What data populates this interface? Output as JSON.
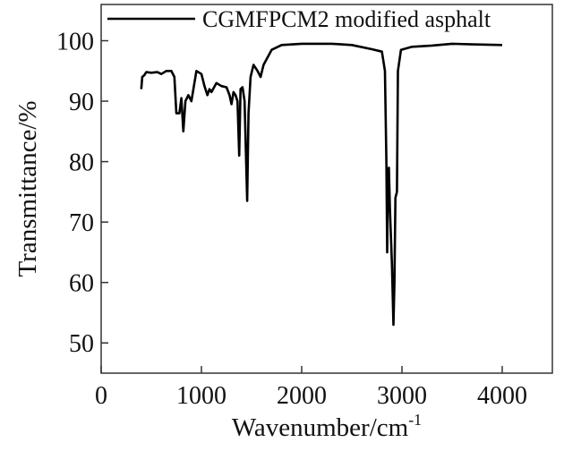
{
  "chart_data": {
    "type": "line",
    "title": "",
    "xlabel": "Wavenumber/cm",
    "xlabel_sup": "-1",
    "ylabel": "Transmittance/%",
    "xlim": [
      0,
      4500
    ],
    "ylim": [
      45,
      106
    ],
    "xticks": [
      0,
      1000,
      2000,
      3000,
      4000
    ],
    "xtick_labels": [
      "0",
      "1000",
      "2000",
      "3000",
      "4000"
    ],
    "yticks": [
      50,
      60,
      70,
      80,
      90,
      100
    ],
    "ytick_labels": [
      "50",
      "60",
      "70",
      "80",
      "90",
      "100"
    ],
    "grid": false,
    "legend_position": "top",
    "series": [
      {
        "name": "CGMFPCM2 modified asphalt",
        "color": "#000000",
        "x": [
          400,
          410,
          430,
          450,
          500,
          560,
          600,
          650,
          700,
          730,
          750,
          780,
          800,
          820,
          840,
          870,
          900,
          950,
          1000,
          1030,
          1060,
          1080,
          1100,
          1150,
          1200,
          1250,
          1280,
          1300,
          1320,
          1340,
          1360,
          1377,
          1390,
          1410,
          1430,
          1456,
          1470,
          1490,
          1520,
          1560,
          1590,
          1620,
          1700,
          1800,
          2000,
          2300,
          2500,
          2700,
          2800,
          2830,
          2845,
          2853,
          2862,
          2870,
          2880,
          2900,
          2915,
          2925,
          2935,
          2950,
          2960,
          2990,
          3100,
          3300,
          3500,
          3700,
          4000
        ],
        "y": [
          92,
          94,
          94.3,
          94.8,
          94.7,
          94.8,
          94.5,
          95,
          95,
          94,
          88,
          88,
          90.5,
          85,
          90,
          91,
          90,
          95,
          94.5,
          92.5,
          91,
          92,
          91.5,
          93,
          92.5,
          92.3,
          91,
          89.5,
          91.5,
          91,
          90,
          81,
          92,
          92.3,
          90,
          73.5,
          88,
          94,
          96,
          95,
          94,
          96,
          98.5,
          99.3,
          99.5,
          99.5,
          99.3,
          98.6,
          98.2,
          95,
          80,
          65,
          78,
          79,
          72,
          63,
          53,
          60,
          74,
          75,
          95,
          98.5,
          99,
          99.2,
          99.5,
          99.4,
          99.3
        ]
      }
    ]
  }
}
